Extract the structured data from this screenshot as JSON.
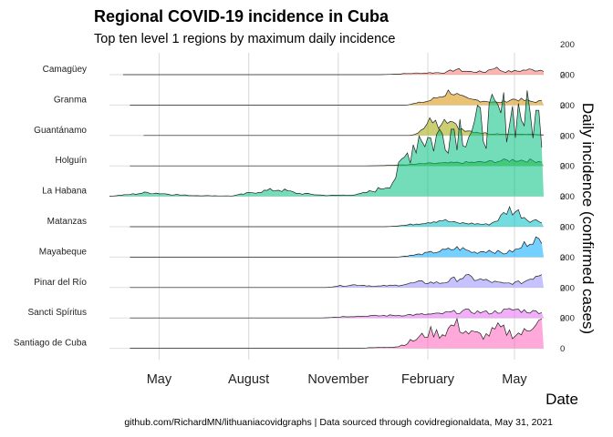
{
  "title": "Regional COVID-19 incidence in Cuba",
  "subtitle": "Top ten level 1 regions by maximum daily incidence",
  "caption": "github.com/RichardMN/lithuaniacovidgraphs | Data sourced through covidregionaldata, May 31, 2021",
  "chart_data": {
    "type": "area",
    "xlabel": "Date",
    "ylabel": "Daily incidence (confirmed cases)",
    "x_ticks": [
      "May",
      "August",
      "November",
      "February",
      "May"
    ],
    "x_tick_dates": [
      "2020-05-01",
      "2020-08-01",
      "2020-11-01",
      "2021-02-01",
      "2021-05-01"
    ],
    "x_range": [
      "2020-03-11",
      "2021-05-31"
    ],
    "y_ticks": [
      0,
      200
    ],
    "grid": true,
    "legend": "none",
    "series": [
      {
        "name": "Camagüey",
        "color": "#F8766D",
        "points": [
          [
            "2020-03-25",
            0
          ],
          [
            "2020-12-15",
            0
          ],
          [
            "2021-01-15",
            8
          ],
          [
            "2021-02-01",
            12
          ],
          [
            "2021-02-20",
            14
          ],
          [
            "2021-03-01",
            35
          ],
          [
            "2021-03-15",
            20
          ],
          [
            "2021-04-01",
            18
          ],
          [
            "2021-04-10",
            50
          ],
          [
            "2021-04-20",
            20
          ],
          [
            "2021-05-01",
            22
          ],
          [
            "2021-05-15",
            32
          ],
          [
            "2021-05-31",
            30
          ]
        ]
      },
      {
        "name": "Granma",
        "color": "#D89000",
        "points": [
          [
            "2020-04-01",
            0
          ],
          [
            "2021-01-10",
            0
          ],
          [
            "2021-02-01",
            25
          ],
          [
            "2021-02-15",
            60
          ],
          [
            "2021-02-25",
            95
          ],
          [
            "2021-03-05",
            55
          ],
          [
            "2021-03-15",
            35
          ],
          [
            "2021-04-01",
            28
          ],
          [
            "2021-04-15",
            15
          ],
          [
            "2021-05-01",
            40
          ],
          [
            "2021-05-20",
            22
          ],
          [
            "2021-05-31",
            25
          ]
        ]
      },
      {
        "name": "Guantánamo",
        "color": "#A3A500",
        "points": [
          [
            "2020-04-15",
            0
          ],
          [
            "2021-01-15",
            0
          ],
          [
            "2021-01-28",
            40
          ],
          [
            "2021-02-05",
            110
          ],
          [
            "2021-02-12",
            60
          ],
          [
            "2021-02-18",
            150
          ],
          [
            "2021-02-25",
            80
          ],
          [
            "2021-03-05",
            50
          ],
          [
            "2021-03-20",
            25
          ],
          [
            "2021-04-05",
            12
          ],
          [
            "2021-05-31",
            5
          ]
        ]
      },
      {
        "name": "Holguín",
        "color": "#39B600",
        "points": [
          [
            "2020-04-01",
            0
          ],
          [
            "2020-12-01",
            0
          ],
          [
            "2021-01-01",
            5
          ],
          [
            "2021-02-01",
            15
          ],
          [
            "2021-03-01",
            20
          ],
          [
            "2021-04-01",
            25
          ],
          [
            "2021-05-01",
            40
          ],
          [
            "2021-05-31",
            30
          ]
        ]
      },
      {
        "name": "La Habana",
        "color": "#00BF7D",
        "points": [
          [
            "2020-03-11",
            0
          ],
          [
            "2020-04-01",
            12
          ],
          [
            "2020-04-20",
            25
          ],
          [
            "2020-05-10",
            15
          ],
          [
            "2020-06-01",
            5
          ],
          [
            "2020-07-15",
            2
          ],
          [
            "2020-08-10",
            30
          ],
          [
            "2020-09-01",
            45
          ],
          [
            "2020-09-20",
            20
          ],
          [
            "2020-10-20",
            5
          ],
          [
            "2020-11-20",
            10
          ],
          [
            "2020-12-10",
            40
          ],
          [
            "2020-12-25",
            80
          ],
          [
            "2021-01-05",
            200
          ],
          [
            "2021-01-15",
            330
          ],
          [
            "2021-01-25",
            420
          ],
          [
            "2021-02-05",
            360
          ],
          [
            "2021-02-20",
            430
          ],
          [
            "2021-03-05",
            470
          ],
          [
            "2021-03-20",
            440
          ],
          [
            "2021-04-05",
            490
          ],
          [
            "2021-04-20",
            530
          ],
          [
            "2021-05-05",
            560
          ],
          [
            "2021-05-20",
            510
          ],
          [
            "2021-05-31",
            480
          ]
        ]
      },
      {
        "name": "Matanzas",
        "color": "#00BFC4",
        "points": [
          [
            "2020-04-01",
            0
          ],
          [
            "2020-12-20",
            0
          ],
          [
            "2021-01-10",
            10
          ],
          [
            "2021-02-01",
            30
          ],
          [
            "2021-02-15",
            45
          ],
          [
            "2021-03-01",
            25
          ],
          [
            "2021-03-20",
            20
          ],
          [
            "2021-04-05",
            15
          ],
          [
            "2021-04-15",
            50
          ],
          [
            "2021-04-25",
            115
          ],
          [
            "2021-05-05",
            95
          ],
          [
            "2021-05-15",
            45
          ],
          [
            "2021-05-31",
            35
          ]
        ]
      },
      {
        "name": "Mayabeque",
        "color": "#00A9FF",
        "points": [
          [
            "2020-04-01",
            0
          ],
          [
            "2021-01-01",
            0
          ],
          [
            "2021-01-20",
            15
          ],
          [
            "2021-02-15",
            40
          ],
          [
            "2021-03-05",
            60
          ],
          [
            "2021-03-20",
            30
          ],
          [
            "2021-04-05",
            45
          ],
          [
            "2021-04-20",
            25
          ],
          [
            "2021-05-05",
            50
          ],
          [
            "2021-05-20",
            130
          ],
          [
            "2021-05-31",
            70
          ]
        ]
      },
      {
        "name": "Pinar del Río",
        "color": "#9590FF",
        "points": [
          [
            "2020-04-01",
            0
          ],
          [
            "2020-10-20",
            0
          ],
          [
            "2020-11-01",
            10
          ],
          [
            "2020-11-20",
            18
          ],
          [
            "2020-12-10",
            8
          ],
          [
            "2021-01-01",
            15
          ],
          [
            "2021-01-25",
            35
          ],
          [
            "2021-02-15",
            30
          ],
          [
            "2021-03-10",
            70
          ],
          [
            "2021-04-01",
            45
          ],
          [
            "2021-04-20",
            25
          ],
          [
            "2021-05-10",
            35
          ],
          [
            "2021-05-31",
            110
          ]
        ]
      },
      {
        "name": "Sancti Spíritus",
        "color": "#E76BF3",
        "points": [
          [
            "2020-04-01",
            0
          ],
          [
            "2020-10-15",
            0
          ],
          [
            "2020-11-10",
            10
          ],
          [
            "2020-12-20",
            15
          ],
          [
            "2021-01-15",
            20
          ],
          [
            "2021-02-10",
            25
          ],
          [
            "2021-03-10",
            45
          ],
          [
            "2021-04-05",
            35
          ],
          [
            "2021-05-01",
            55
          ],
          [
            "2021-05-20",
            40
          ],
          [
            "2021-05-31",
            45
          ]
        ]
      },
      {
        "name": "Santiago de Cuba",
        "color": "#FF62BC",
        "points": [
          [
            "2020-04-01",
            0
          ],
          [
            "2020-11-20",
            0
          ],
          [
            "2021-01-01",
            10
          ],
          [
            "2021-01-20",
            60
          ],
          [
            "2021-02-05",
            110
          ],
          [
            "2021-02-15",
            90
          ],
          [
            "2021-03-01",
            160
          ],
          [
            "2021-03-15",
            100
          ],
          [
            "2021-04-01",
            80
          ],
          [
            "2021-04-15",
            130
          ],
          [
            "2021-05-01",
            90
          ],
          [
            "2021-05-15",
            110
          ],
          [
            "2021-05-25",
            230
          ],
          [
            "2021-05-31",
            150
          ]
        ]
      }
    ]
  }
}
